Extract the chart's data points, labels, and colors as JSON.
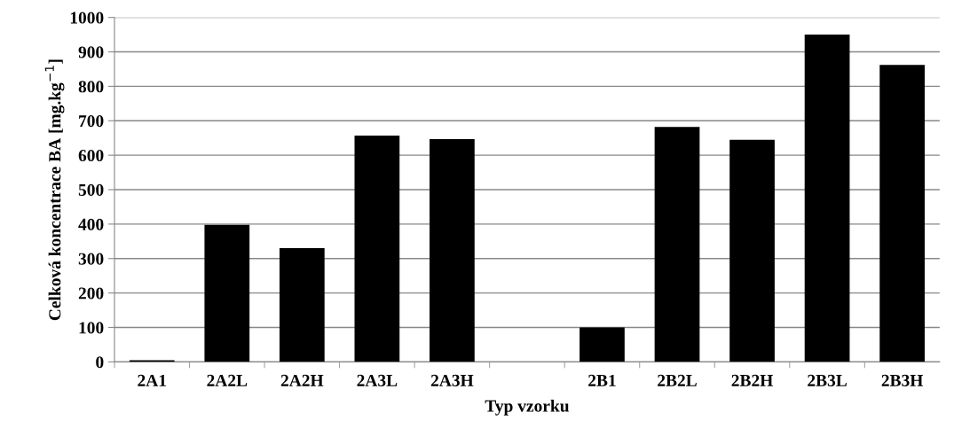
{
  "chart_data": {
    "type": "bar",
    "xlabel": "Typ vzorku",
    "ylabel": "Celková koncentrace BA [mg.kg$^{−1}$]",
    "categories": [
      "2A1",
      "2A2L",
      "2A2H",
      "2A3L",
      "2A3H",
      null,
      "2B1",
      "2B2L",
      "2B2H",
      "2B3L",
      "2B3H"
    ],
    "values": [
      5,
      398,
      330,
      657,
      647,
      null,
      100,
      682,
      645,
      950,
      862
    ],
    "color": "#000000",
    "ylim": [
      0,
      1000
    ],
    "yticks": [
      0,
      100,
      200,
      300,
      400,
      500,
      600,
      700,
      800,
      900,
      1000
    ],
    "grid": "y"
  }
}
